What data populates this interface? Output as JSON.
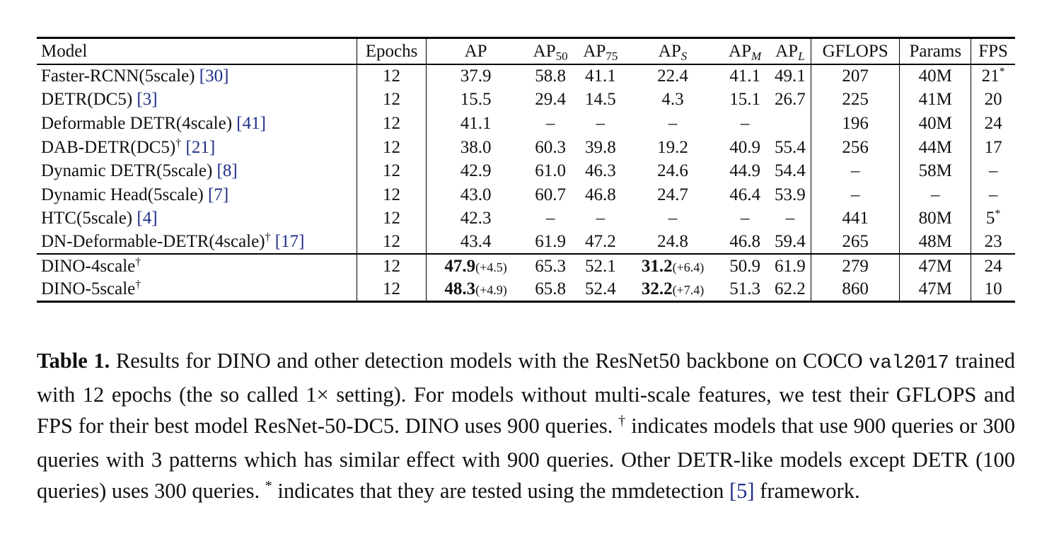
{
  "table": {
    "headers": {
      "model": "Model",
      "epochs": "Epochs",
      "ap": "AP",
      "ap50_base": "AP",
      "ap50_sub": "50",
      "ap75_base": "AP",
      "ap75_sub": "75",
      "aps_base": "AP",
      "aps_sub": "S",
      "apm_base": "AP",
      "apm_sub": "M",
      "apl_base": "AP",
      "apl_sub": "L",
      "gflops": "GFLOPS",
      "params": "Params",
      "fps": "FPS"
    },
    "rows": [
      {
        "name": "Faster-RCNN(5scale)",
        "mark": "",
        "ref": "[30]",
        "epochs": "12",
        "ap": "37.9",
        "ap50": "58.8",
        "ap75": "41.1",
        "aps": "22.4",
        "apm": "41.1",
        "apl": "49.1",
        "gflops": "207",
        "params": "40M",
        "fps": "21",
        "fps_mark": "*"
      },
      {
        "name": "DETR(DC5)",
        "mark": "",
        "ref": "[3]",
        "epochs": "12",
        "ap": "15.5",
        "ap50": "29.4",
        "ap75": "14.5",
        "aps": "4.3",
        "apm": "15.1",
        "apl": "26.7",
        "gflops": "225",
        "params": "41M",
        "fps": "20",
        "fps_mark": ""
      },
      {
        "name": "Deformable DETR(4scale)",
        "mark": "",
        "ref": "[41]",
        "epochs": "12",
        "ap": "41.1",
        "ap50": "–",
        "ap75": "–",
        "aps": "–",
        "apm": "–",
        "apl": "",
        "gflops": "196",
        "params": "40M",
        "fps": "24",
        "fps_mark": ""
      },
      {
        "name": "DAB-DETR(DC5)",
        "mark": "†",
        "ref": "[21]",
        "epochs": "12",
        "ap": "38.0",
        "ap50": "60.3",
        "ap75": "39.8",
        "aps": "19.2",
        "apm": "40.9",
        "apl": "55.4",
        "gflops": "256",
        "params": "44M",
        "fps": "17",
        "fps_mark": ""
      },
      {
        "name": "Dynamic DETR(5scale)",
        "mark": "",
        "ref": "[8]",
        "epochs": "12",
        "ap": "42.9",
        "ap50": "61.0",
        "ap75": "46.3",
        "aps": "24.6",
        "apm": "44.9",
        "apl": "54.4",
        "gflops": "–",
        "params": "58M",
        "fps": "–",
        "fps_mark": ""
      },
      {
        "name": "Dynamic Head(5scale)",
        "mark": "",
        "ref": "[7]",
        "epochs": "12",
        "ap": "43.0",
        "ap50": "60.7",
        "ap75": "46.8",
        "aps": "24.7",
        "apm": "46.4",
        "apl": "53.9",
        "gflops": "–",
        "params": "–",
        "fps": "–",
        "fps_mark": ""
      },
      {
        "name": "HTC(5scale)",
        "mark": "",
        "ref": "[4]",
        "epochs": "12",
        "ap": "42.3",
        "ap50": "–",
        "ap75": "–",
        "aps": "–",
        "apm": "–",
        "apl": "–",
        "gflops": "441",
        "params": "80M",
        "fps": "5",
        "fps_mark": "*"
      },
      {
        "name": "DN-Deformable-DETR(4scale)",
        "mark": "†",
        "ref": "[17]",
        "epochs": "12",
        "ap": "43.4",
        "ap50": "61.9",
        "ap75": "47.2",
        "aps": "24.8",
        "apm": "46.8",
        "apl": "59.4",
        "gflops": "265",
        "params": "48M",
        "fps": "23",
        "fps_mark": ""
      }
    ],
    "dino_rows": [
      {
        "name": "DINO-4scale",
        "mark": "†",
        "epochs": "12",
        "ap": "47.9",
        "ap_delta": "(+4.5)",
        "ap50": "65.3",
        "ap75": "52.1",
        "aps": "31.2",
        "aps_delta": "(+6.4)",
        "apm": "50.9",
        "apl": "61.9",
        "gflops": "279",
        "params": "47M",
        "fps": "24"
      },
      {
        "name": "DINO-5scale",
        "mark": "†",
        "epochs": "12",
        "ap": "48.3",
        "ap_delta": "(+4.9)",
        "ap50": "65.8",
        "ap75": "52.4",
        "aps": "32.2",
        "aps_delta": "(+7.4)",
        "apm": "51.3",
        "apl": "62.2",
        "gflops": "860",
        "params": "47M",
        "fps": "10"
      }
    ]
  },
  "caption": {
    "label": "Table 1.",
    "text_1": " Results for DINO and other detection models with the ResNet50 backbone on COCO ",
    "code": "val2017",
    "text_2": " trained with 12 epochs (the so called 1× setting). For models without multi-scale features, we test their GFLOPS and FPS for their best model ResNet-50-DC5. DINO uses 900 queries. ",
    "dagger": "†",
    "text_3": " indicates models that use 900 queries or 300 queries with 3 patterns which has similar effect with 900 queries. Other DETR-like models except DETR (100 queries) uses 300 queries. ",
    "star": "*",
    "text_4": " indicates that they are tested using the mmdetection ",
    "ref": "[5]",
    "text_5": " framework."
  }
}
